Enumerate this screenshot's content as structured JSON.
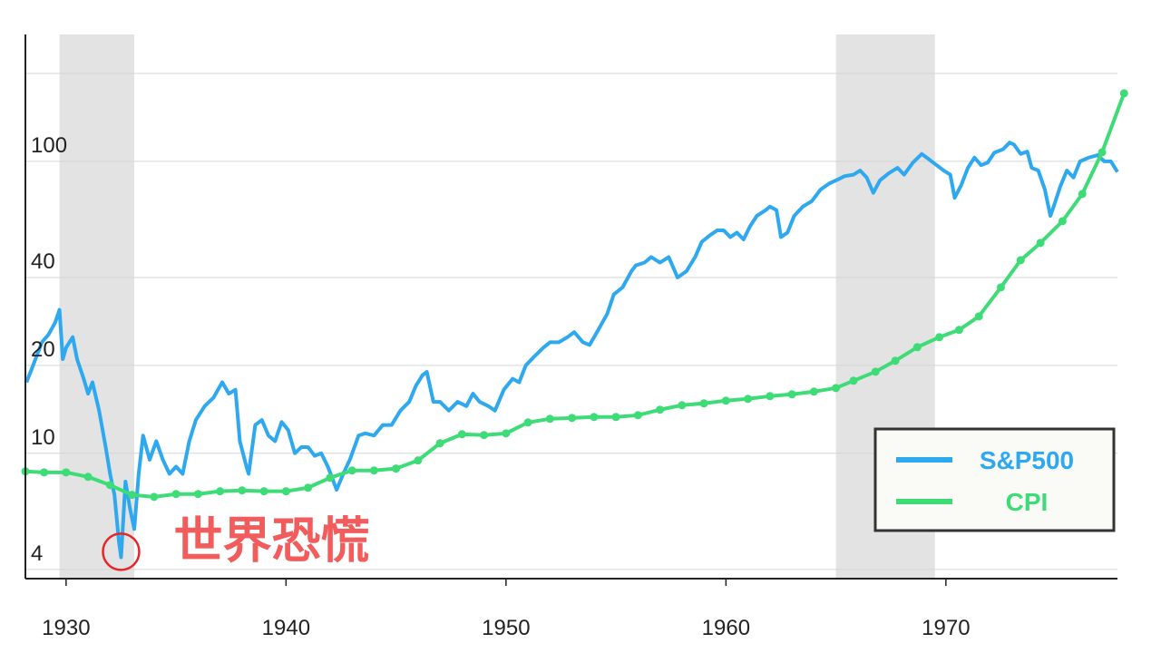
{
  "chart_data": {
    "type": "line",
    "ylog": true,
    "grid": true,
    "legend": "lower right",
    "xlim": [
      1928.15,
      1977.8
    ],
    "ylim": [
      3.72,
      272
    ],
    "xticks": [
      1930,
      1940,
      1950,
      1960,
      1970
    ],
    "yticks": [
      4,
      10,
      20,
      40,
      100,
      {
        "value": 200,
        "label": null
      }
    ],
    "shaded_regions": [
      [
        1929.7,
        1933.1
      ],
      [
        1965.0,
        1969.5
      ]
    ],
    "shade_color": "#e3e3e3",
    "annotation": {
      "text": "世界恐慌",
      "x": 1932.5,
      "y": 4.6,
      "color": "#e8262a"
    },
    "series": [
      {
        "name": "S&P500",
        "color": "#2ea8ef",
        "x": [
          1928.2,
          1928.5,
          1928.9,
          1929.2,
          1929.5,
          1929.7,
          1929.85,
          1930.0,
          1930.3,
          1930.5,
          1930.8,
          1931.0,
          1931.2,
          1931.5,
          1931.8,
          1932.0,
          1932.2,
          1932.4,
          1932.5,
          1932.7,
          1932.9,
          1933.1,
          1933.3,
          1933.5,
          1933.8,
          1934.1,
          1934.4,
          1934.7,
          1935.0,
          1935.3,
          1935.6,
          1935.9,
          1936.3,
          1936.7,
          1937.1,
          1937.4,
          1937.7,
          1937.9,
          1938.2,
          1938.3,
          1938.6,
          1938.9,
          1939.2,
          1939.5,
          1939.8,
          1940.1,
          1940.4,
          1940.7,
          1941.0,
          1941.3,
          1941.6,
          1941.9,
          1942.3,
          1942.6,
          1942.9,
          1943.3,
          1943.6,
          1944.0,
          1944.4,
          1944.8,
          1945.2,
          1945.6,
          1945.9,
          1946.2,
          1946.4,
          1946.7,
          1947.0,
          1947.4,
          1947.8,
          1948.2,
          1948.5,
          1948.8,
          1949.2,
          1949.5,
          1949.9,
          1950.3,
          1950.6,
          1950.9,
          1951.3,
          1951.7,
          1952.0,
          1952.4,
          1952.8,
          1953.1,
          1953.5,
          1953.8,
          1954.2,
          1954.6,
          1954.9,
          1955.3,
          1955.7,
          1955.9,
          1956.3,
          1956.6,
          1957.0,
          1957.4,
          1957.8,
          1958.2,
          1958.6,
          1958.9,
          1959.3,
          1959.6,
          1959.9,
          1960.2,
          1960.5,
          1960.8,
          1961.1,
          1961.4,
          1961.8,
          1962.0,
          1962.3,
          1962.5,
          1962.8,
          1963.1,
          1963.5,
          1963.9,
          1964.3,
          1964.7,
          1965.0,
          1965.4,
          1965.8,
          1966.1,
          1966.4,
          1966.7,
          1967.0,
          1967.4,
          1967.8,
          1968.1,
          1968.5,
          1968.9,
          1969.2,
          1969.5,
          1969.9,
          1970.2,
          1970.4,
          1970.7,
          1971.0,
          1971.3,
          1971.6,
          1971.9,
          1972.2,
          1972.6,
          1972.9,
          1973.1,
          1973.4,
          1973.7,
          1973.9,
          1974.2,
          1974.5,
          1974.75,
          1974.9,
          1975.2,
          1975.5,
          1975.8,
          1976.1,
          1976.5,
          1976.9,
          1977.2,
          1977.5,
          1977.8
        ],
        "values": [
          17.5,
          20,
          24,
          25.5,
          28,
          31,
          21,
          23,
          25,
          21,
          18,
          16,
          17.5,
          14,
          10.5,
          8.5,
          7.2,
          5,
          4.4,
          8,
          6.5,
          5.5,
          8.5,
          11.5,
          9.5,
          11,
          9.5,
          8.5,
          9,
          8.5,
          11,
          13,
          14.5,
          15.5,
          17.5,
          16,
          16.5,
          11,
          9,
          8.5,
          12.5,
          13,
          11.5,
          11,
          12.8,
          12,
          10,
          10.5,
          10.5,
          9.8,
          10,
          9,
          7.5,
          8.5,
          9.5,
          11.5,
          11.7,
          11.5,
          12.5,
          12.5,
          14,
          15,
          17,
          18.5,
          19,
          15,
          15,
          14,
          15,
          14.5,
          16,
          15,
          14.5,
          14,
          16.5,
          18,
          17.5,
          20,
          21.5,
          23,
          24,
          24,
          25,
          26,
          24,
          23.5,
          26.5,
          30,
          35,
          37,
          42,
          44,
          45,
          47,
          45,
          47,
          40,
          42,
          47,
          53,
          56,
          58,
          58,
          55,
          57,
          54,
          60,
          65,
          68,
          70,
          68,
          55,
          57,
          65,
          70,
          73,
          80,
          84,
          86,
          89,
          90,
          93,
          88,
          78,
          86,
          91,
          95,
          90,
          99,
          106,
          102,
          98,
          93,
          90,
          75,
          83,
          95,
          103,
          97,
          99,
          107,
          110,
          116,
          114,
          106,
          108,
          95,
          93,
          80,
          65,
          70,
          82,
          93,
          88,
          100,
          103,
          105,
          100,
          100,
          92
        ]
      },
      {
        "name": "CPI",
        "color": "#3ddc77",
        "markers": true,
        "x": [
          1928.15,
          1929,
          1930,
          1931,
          1932,
          1933,
          1934,
          1935,
          1936,
          1937,
          1938,
          1939,
          1940,
          1941,
          1942,
          1943,
          1944,
          1945,
          1946,
          1947,
          1948,
          1949,
          1950,
          1951,
          1952,
          1953,
          1954,
          1955,
          1956,
          1957,
          1958,
          1959,
          1960,
          1961,
          1962,
          1963,
          1964,
          1965,
          1965.8,
          1966.8,
          1967.7,
          1968.7,
          1969.7,
          1970.6,
          1971.5,
          1972.5,
          1973.4,
          1974.3,
          1975.3,
          1976.2,
          1977.1,
          1978.1
        ],
        "values": [
          8.67,
          8.6,
          8.6,
          8.3,
          7.78,
          7.2,
          7.09,
          7.25,
          7.25,
          7.41,
          7.46,
          7.41,
          7.41,
          7.62,
          8.24,
          8.73,
          8.73,
          8.86,
          9.45,
          10.82,
          11.62,
          11.54,
          11.7,
          12.75,
          13.12,
          13.21,
          13.31,
          13.31,
          13.5,
          14.1,
          14.61,
          14.82,
          15.14,
          15.36,
          15.69,
          15.92,
          16.26,
          16.73,
          17.72,
          19.03,
          20.74,
          23.09,
          24.98,
          26.45,
          29.44,
          37.01,
          45.86,
          52.54,
          62.37,
          77.3,
          107.4,
          171.0
        ]
      }
    ]
  }
}
